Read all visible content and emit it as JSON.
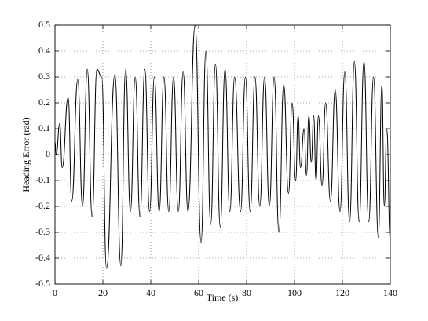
{
  "chart_data": {
    "type": "line",
    "x_label": "Time (s)",
    "y_label": "Heading Error (rad)",
    "x": [
      0,
      0.5,
      2,
      3,
      5.5,
      7,
      9.5,
      11.5,
      13.5,
      15.5,
      17.5,
      19.5,
      21.5,
      25,
      27.5,
      29.5,
      31.5,
      33.5,
      35.5,
      37.5,
      39.5,
      41.5,
      43.5,
      45.5,
      47.5,
      49.5,
      51.5,
      53.5,
      55.5,
      58.5,
      61,
      63,
      65,
      67,
      69,
      71,
      73,
      75,
      77.5,
      79.5,
      81.5,
      83.5,
      85.5,
      87.5,
      89.5,
      91.5,
      93.5,
      95.5,
      97.5,
      99,
      100.5,
      101.5,
      102.5,
      104,
      105,
      106,
      107,
      108,
      109,
      110,
      111.5,
      113,
      115,
      117,
      119,
      121,
      123,
      125,
      127,
      129,
      131,
      133,
      135,
      136.5,
      137.5,
      138.5,
      140
    ],
    "series": [
      {
        "name": "Heading Error",
        "color": "#000000",
        "values": [
          0.05,
          0.0,
          0.12,
          -0.05,
          0.22,
          -0.18,
          0.29,
          -0.2,
          0.33,
          -0.24,
          0.33,
          0.3,
          -0.44,
          0.31,
          -0.43,
          0.33,
          -0.22,
          0.3,
          -0.24,
          0.33,
          -0.22,
          0.3,
          -0.22,
          0.3,
          -0.22,
          0.3,
          -0.22,
          0.32,
          -0.22,
          0.5,
          -0.34,
          0.4,
          -0.27,
          0.35,
          -0.28,
          0.33,
          -0.22,
          0.3,
          -0.22,
          0.3,
          -0.22,
          0.3,
          -0.2,
          0.3,
          -0.2,
          0.3,
          -0.3,
          0.27,
          -0.15,
          0.2,
          -0.1,
          0.15,
          -0.05,
          0.1,
          -0.08,
          0.15,
          -0.03,
          0.15,
          -0.1,
          0.15,
          -0.12,
          0.2,
          -0.18,
          0.25,
          -0.22,
          0.32,
          -0.26,
          0.36,
          -0.26,
          0.36,
          -0.26,
          0.3,
          -0.32,
          0.27,
          -0.2,
          0.1,
          -0.33
        ]
      }
    ],
    "xlim": [
      0,
      140
    ],
    "xticks": [
      0,
      20,
      40,
      60,
      80,
      100,
      120,
      140
    ],
    "ylim": [
      -0.5,
      0.5
    ],
    "yticks": [
      -0.5,
      -0.4,
      -0.3,
      -0.2,
      -0.1,
      0,
      0.1,
      0.2,
      0.3,
      0.4,
      0.5
    ],
    "grid": true
  }
}
